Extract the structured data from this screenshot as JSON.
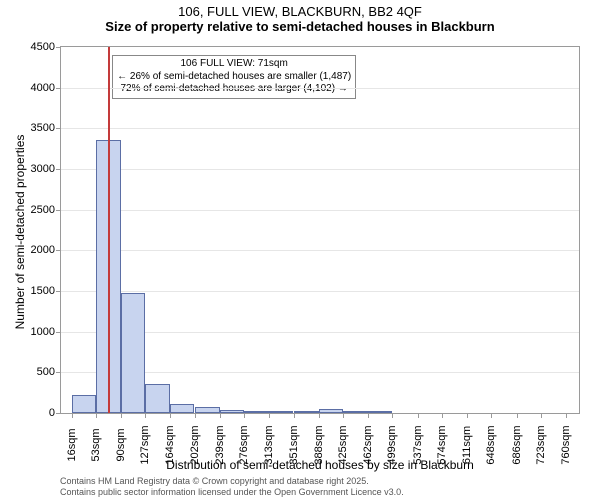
{
  "title": {
    "line1": "106, FULL VIEW, BLACKBURN, BB2 4QF",
    "line2": "Size of property relative to semi-detached houses in Blackburn"
  },
  "chart": {
    "type": "histogram",
    "xlim": [
      0,
      780
    ],
    "ylim": [
      0,
      4500
    ],
    "ytick_step": 500,
    "yticks": [
      0,
      500,
      1000,
      1500,
      2000,
      2500,
      3000,
      3500,
      4000,
      4500
    ],
    "xtick_start": 16,
    "xtick_step": 37,
    "xtick_count": 21,
    "xticks": [
      16,
      53,
      90,
      127,
      164,
      202,
      239,
      276,
      313,
      351,
      388,
      425,
      462,
      499,
      537,
      574,
      611,
      648,
      686,
      723,
      760
    ],
    "bin_width": 37,
    "bars": [
      {
        "x": 16,
        "y": 220
      },
      {
        "x": 53,
        "y": 3360
      },
      {
        "x": 90,
        "y": 1480
      },
      {
        "x": 127,
        "y": 360
      },
      {
        "x": 164,
        "y": 110
      },
      {
        "x": 202,
        "y": 70
      },
      {
        "x": 239,
        "y": 40
      },
      {
        "x": 276,
        "y": 30
      },
      {
        "x": 313,
        "y": 15
      },
      {
        "x": 351,
        "y": 15
      },
      {
        "x": 388,
        "y": 50
      },
      {
        "x": 425,
        "y": 5
      },
      {
        "x": 462,
        "y": 5
      },
      {
        "x": 499,
        "y": 0
      },
      {
        "x": 537,
        "y": 0
      },
      {
        "x": 574,
        "y": 0
      },
      {
        "x": 611,
        "y": 0
      },
      {
        "x": 648,
        "y": 0
      },
      {
        "x": 686,
        "y": 0
      },
      {
        "x": 723,
        "y": 0
      },
      {
        "x": 760,
        "y": 0
      }
    ],
    "bar_fill": "#c8d4ef",
    "bar_border": "#5b6ea5",
    "grid_color": "#e6e6e6",
    "axis_color": "#9a9a9a",
    "background_color": "#ffffff",
    "ref_line": {
      "x": 71,
      "color": "#c43a3a"
    },
    "annotation": {
      "line1": "106 FULL VIEW: 71sqm",
      "line2": "← 26% of semi-detached houses are smaller (1,487)",
      "line3": "72% of semi-detached houses are larger (4,102) →"
    },
    "ylabel": "Number of semi-detached properties",
    "xlabel": "Distribution of semi-detached houses by size in Blackburn",
    "label_fontsize": 12,
    "tick_fontsize": 11,
    "annotation_fontsize": 10,
    "xtick_unit": "sqm"
  },
  "footer": {
    "line1": "Contains HM Land Registry data © Crown copyright and database right 2025.",
    "line2": "Contains public sector information licensed under the Open Government Licence v3.0."
  }
}
